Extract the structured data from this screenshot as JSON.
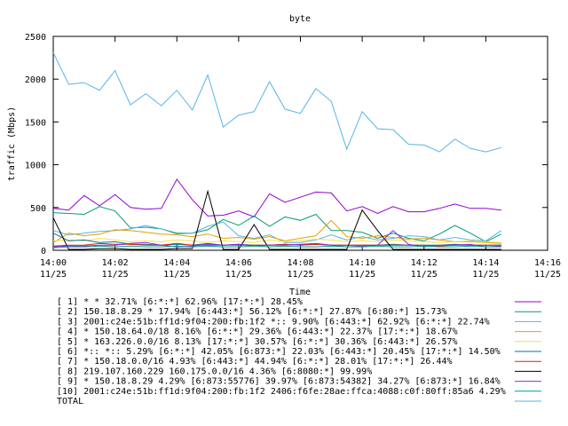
{
  "chart_data": {
    "type": "line",
    "title": "byte",
    "xlabel": "Time",
    "ylabel": "traffic (Mbps)",
    "ylim": [
      0,
      2500
    ],
    "xlim": [
      "11/25 14:00",
      "11/25 14:16"
    ],
    "yticks": [
      "0",
      "500",
      "1000",
      "1500",
      "2000",
      "2500"
    ],
    "xticks": [
      {
        "time": "14:00",
        "date": "11/25"
      },
      {
        "time": "14:02",
        "date": "11/25"
      },
      {
        "time": "14:04",
        "date": "11/25"
      },
      {
        "time": "14:06",
        "date": "11/25"
      },
      {
        "time": "14:08",
        "date": "11/25"
      },
      {
        "time": "14:10",
        "date": "11/25"
      },
      {
        "time": "14:12",
        "date": "11/25"
      },
      {
        "time": "14:14",
        "date": "11/25"
      },
      {
        "time": "14:16",
        "date": "11/25"
      }
    ],
    "grid": false,
    "legend_position": "bottom",
    "x": [
      "14:00:00",
      "14:00:30",
      "14:01:00",
      "14:01:30",
      "14:02:00",
      "14:02:30",
      "14:03:00",
      "14:03:30",
      "14:04:00",
      "14:04:30",
      "14:05:00",
      "14:05:30",
      "14:06:00",
      "14:06:30",
      "14:07:00",
      "14:07:30",
      "14:08:00",
      "14:08:30",
      "14:09:00",
      "14:09:30",
      "14:10:00",
      "14:10:30",
      "14:11:00",
      "14:11:30",
      "14:12:00",
      "14:12:30",
      "14:13:00",
      "14:13:30",
      "14:14:00",
      "14:14:30"
    ],
    "series": [
      {
        "name": "[ 1] * * 32.71%  [6:*:*] 62.96% [17:*:*] 28.45%",
        "color": "#9400d3",
        "values": [
          490,
          470,
          640,
          520,
          650,
          500,
          480,
          490,
          830,
          590,
          400,
          410,
          460,
          390,
          660,
          560,
          620,
          680,
          670,
          460,
          510,
          430,
          510,
          450,
          450,
          490,
          540,
          490,
          490,
          470
        ]
      },
      {
        "name": "[ 2] 150.18.8.29 * 17.94%  [6:443:*] 56.12% [6:*:*] 27.87% [6:80:*] 15.73%",
        "color": "#009e73",
        "values": [
          440,
          430,
          420,
          510,
          460,
          260,
          270,
          250,
          200,
          200,
          240,
          360,
          290,
          400,
          280,
          390,
          350,
          420,
          230,
          230,
          210,
          140,
          200,
          140,
          110,
          190,
          290,
          200,
          100,
          190
        ]
      },
      {
        "name": "[ 3] 2001:c24e:51b:ff1d:9f04:200:fb:1f2 *:: 9.90%  [6:443:*] 62.92% [6:*:*] 22.74%",
        "color": "#56b4e9",
        "values": [
          230,
          180,
          200,
          220,
          230,
          250,
          290,
          250,
          190,
          200,
          280,
          330,
          170,
          140,
          180,
          90,
          90,
          120,
          180,
          120,
          160,
          120,
          140,
          170,
          160,
          120,
          150,
          120,
          110,
          230
        ]
      },
      {
        "name": "[ 4] * 150.18.64.0/18 8.16%  [6:*:*] 29.36% [6:443:*] 22.37% [17:*:*] 18.67%",
        "color": "#e69f00",
        "values": [
          90,
          200,
          170,
          190,
          240,
          230,
          210,
          190,
          180,
          160,
          190,
          140,
          150,
          130,
          160,
          110,
          140,
          170,
          350,
          160,
          140,
          170,
          150,
          130,
          140,
          120,
          100,
          100,
          90,
          80
        ]
      },
      {
        "name": "[ 5] * 163.226.0.0/16 8.13%  [17:*:*] 30.57% [6:*:*] 30.36% [6:443:*] 26.57%",
        "color": "#f0e442",
        "values": [
          110,
          120,
          110,
          140,
          120,
          100,
          110,
          100,
          120,
          110,
          90,
          110,
          100,
          90,
          120,
          100,
          110,
          130,
          120,
          100,
          110,
          100,
          120,
          110,
          100,
          90,
          100,
          110,
          100,
          90
        ]
      },
      {
        "name": "[ 6] *:: *:: 5.29%  [6:*:*] 42.05% [6:873:*] 22.03% [6:443:*] 20.45% [17:*:*] 14.50%",
        "color": "#0072b2",
        "values": [
          200,
          110,
          120,
          90,
          100,
          70,
          70,
          60,
          70,
          60,
          80,
          60,
          70,
          60,
          60,
          70,
          60,
          70,
          60,
          60,
          60,
          60,
          70,
          60,
          60,
          60,
          70,
          60,
          60,
          60
        ]
      },
      {
        "name": "[ 7] * 150.18.0.0/16 4.93%  [6:443:*] 44.94% [6:*:*] 28.01% [17:*:*] 26.44%",
        "color": "#e51e10",
        "values": [
          50,
          60,
          60,
          80,
          70,
          70,
          60,
          60,
          80,
          60,
          60,
          60,
          60,
          60,
          60,
          70,
          60,
          70,
          60,
          60,
          60,
          60,
          60,
          60,
          60,
          50,
          60,
          60,
          60,
          60
        ]
      },
      {
        "name": "[ 8] 219.107.160.229 160.175.0.0/16 4.36%  [6:8080:*] 99.99%",
        "color": "#000000",
        "values": [
          380,
          10,
          10,
          20,
          20,
          10,
          10,
          10,
          20,
          20,
          690,
          10,
          10,
          300,
          10,
          10,
          10,
          10,
          10,
          10,
          470,
          230,
          10,
          10,
          10,
          10,
          10,
          10,
          10,
          10
        ]
      },
      {
        "name": "[ 9] * 150.18.8.29 4.29%  [6:873:55776] 39.97% [6:873:54382] 34.27% [6:873:*] 16.84%",
        "color": "#8a2be2",
        "values": [
          40,
          50,
          50,
          60,
          60,
          80,
          90,
          60,
          40,
          50,
          70,
          60,
          70,
          50,
          60,
          60,
          70,
          80,
          60,
          40,
          50,
          60,
          230,
          70,
          40,
          60,
          60,
          70,
          40,
          50
        ]
      },
      {
        "name": "[10] 2001:c24e:51b:ff1d:9f04:200:fb:1f2 2406:f6fe:28ae:ffca:4088:c0f:80ff:85a6 4.29%",
        "color": "#00a087",
        "values": [
          30,
          40,
          40,
          50,
          40,
          50,
          40,
          40,
          50,
          40,
          50,
          40,
          40,
          50,
          40,
          50,
          40,
          40,
          50,
          40,
          40,
          50,
          40,
          40,
          50,
          40,
          40,
          50,
          40,
          40
        ]
      },
      {
        "name": "TOTAL",
        "color": "#56b4e9",
        "values": [
          2310,
          1940,
          1960,
          1870,
          2100,
          1700,
          1830,
          1690,
          1870,
          1640,
          2050,
          1440,
          1580,
          1620,
          1970,
          1650,
          1600,
          1890,
          1740,
          1180,
          1620,
          1420,
          1410,
          1240,
          1230,
          1150,
          1300,
          1190,
          1150,
          1200
        ]
      }
    ]
  }
}
